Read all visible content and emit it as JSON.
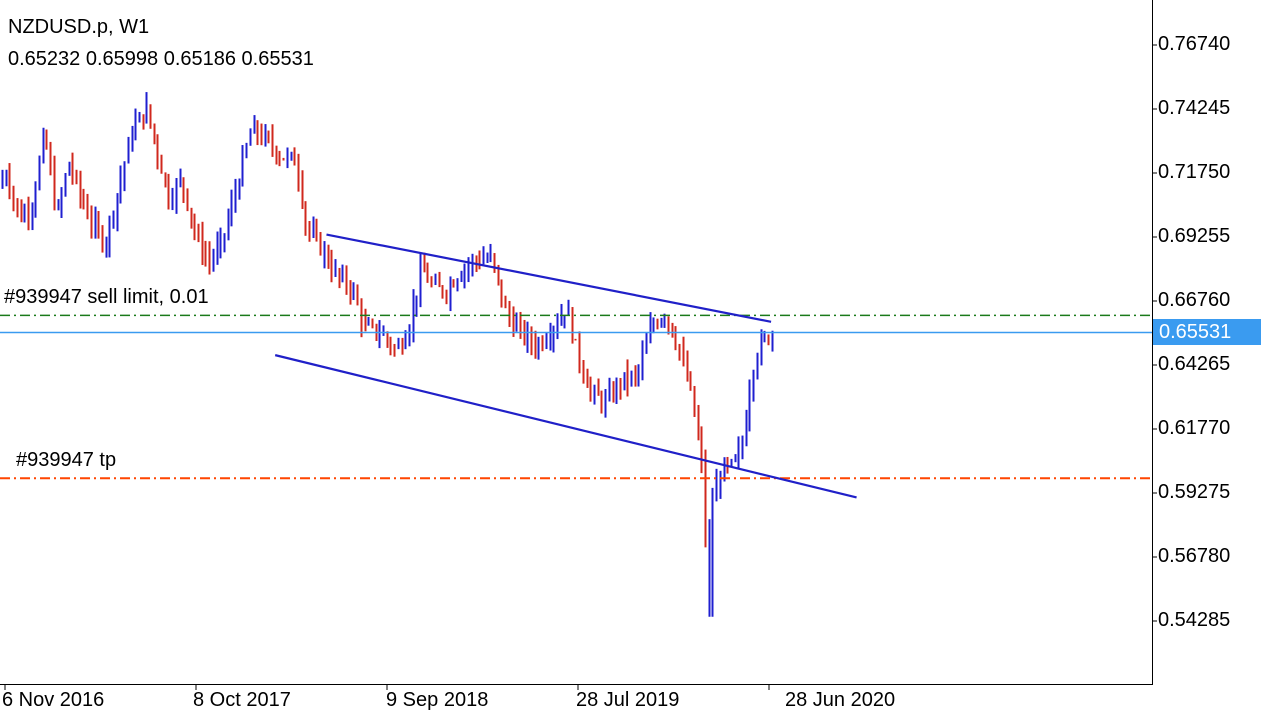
{
  "header": {
    "symbol": "NZDUSD.p, W1",
    "ohlc": "0.65232 0.65998 0.65186 0.65531"
  },
  "orders": {
    "sell_limit_label": "#939947 sell limit, 0.01",
    "tp_label": "#939947 tp"
  },
  "current_price_tag": "0.65531",
  "colors": {
    "bull": "#1f1fd0",
    "bear": "#d0281e",
    "channel": "#2020c8",
    "sell_limit_line": "#1a7a1a",
    "tp_line": "#ff4500",
    "price_line": "#3a9bf0",
    "axis": "#000000"
  },
  "chart_data": {
    "type": "ohlc",
    "y_axis": {
      "range": [
        0.525,
        0.78
      ],
      "ticks": [
        "0.76740",
        "0.74245",
        "0.71750",
        "0.69255",
        "0.66760",
        "0.64265",
        "0.61770",
        "0.59275",
        "0.56780",
        "0.54285"
      ]
    },
    "x_axis": {
      "ticks": [
        "6 Nov 2016",
        "8 Oct 2017",
        "9 Sep 2018",
        "28 Jul 2019",
        "28 Jun 2020"
      ]
    },
    "levels": {
      "sell_limit": 0.662,
      "take_profit": 0.5985,
      "last_price": 0.65531
    },
    "channel": {
      "upper": [
        {
          "time": "Jun 2018",
          "price": 0.6935
        },
        {
          "time": "Aug 2020",
          "price": 0.6595
        }
      ],
      "lower": [
        {
          "time": "Mar 2018",
          "price": 0.6465
        },
        {
          "time": "Jan 2021",
          "price": 0.591
        }
      ]
    },
    "candles": []
  }
}
